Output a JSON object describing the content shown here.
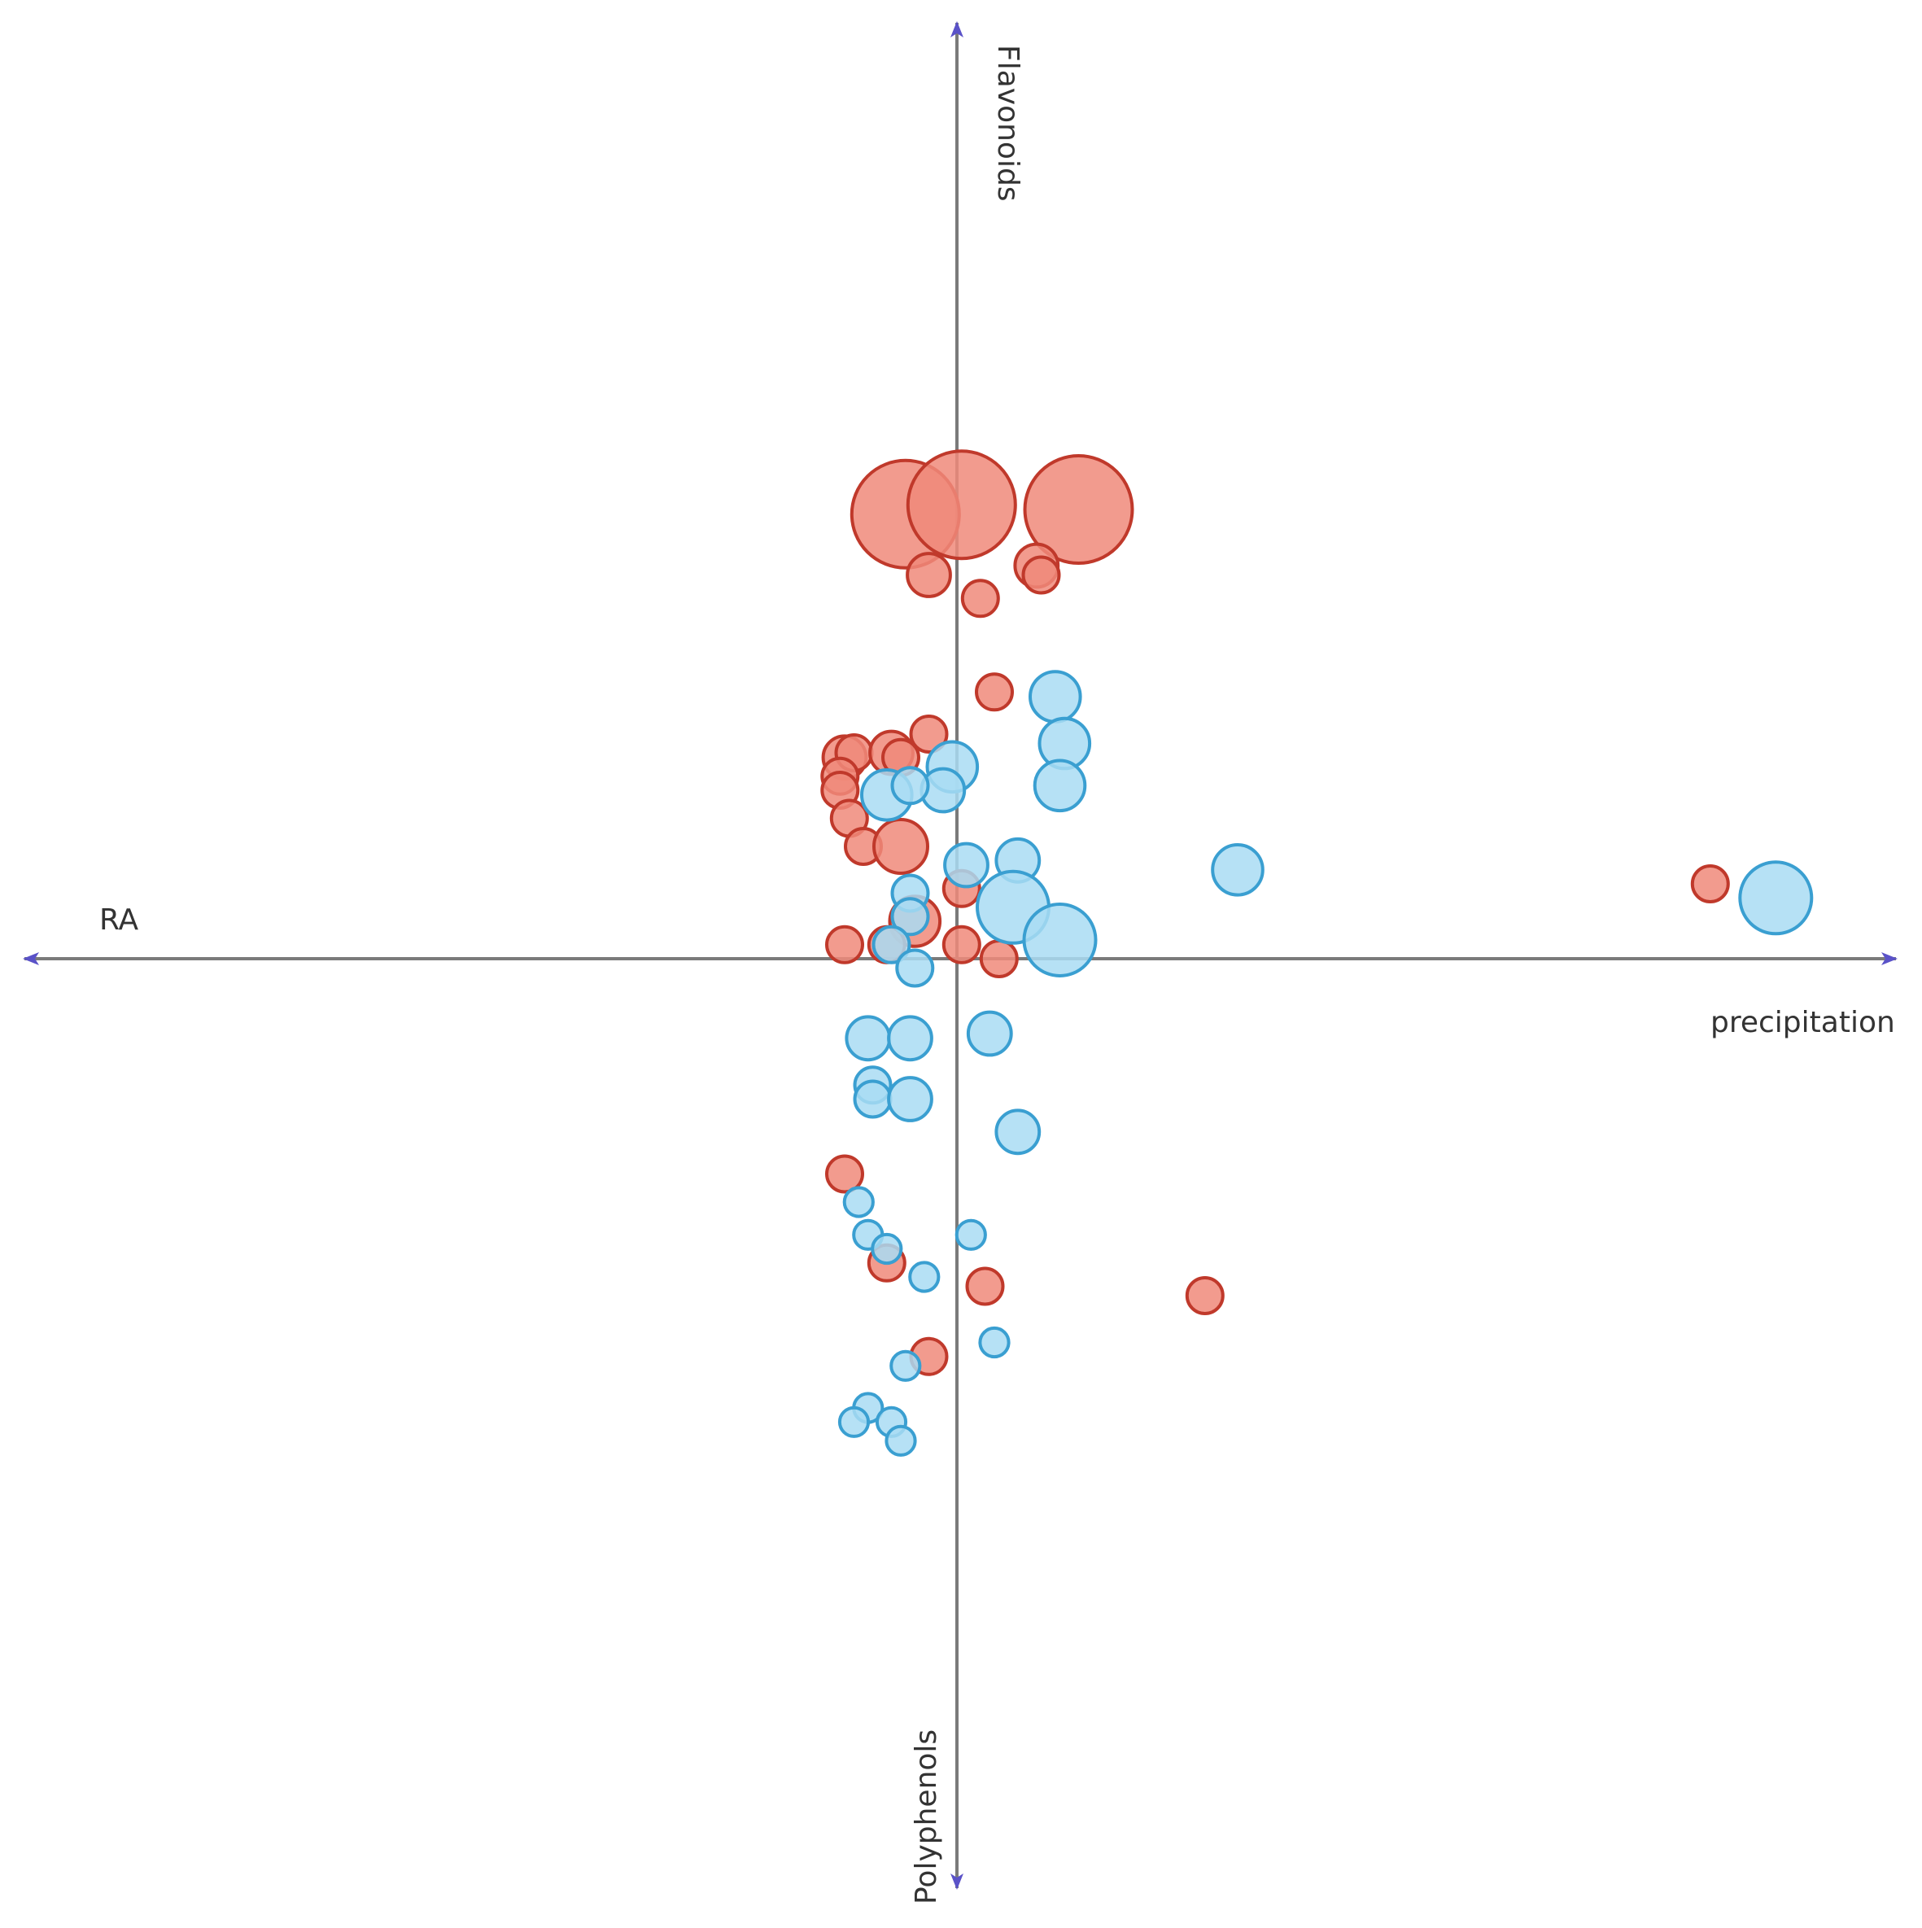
{
  "chart_data": {
    "type": "scatter",
    "subtype": "bubble",
    "title": "",
    "axes": {
      "left_label": "RA",
      "right_label": "precipitation",
      "top_label": "Flavonoids",
      "bottom_label": "Polyphenols"
    },
    "grid": false,
    "legend": "none",
    "xlim": [
      -2.0,
      2.0
    ],
    "ylim": [
      -2.0,
      2.0
    ],
    "colors": {
      "red_fill": "#f08a7a",
      "red_stroke": "#c0392b",
      "blue_fill": "#a9dcf3",
      "blue_stroke": "#3a9fd1",
      "axis": "#7a7a7a",
      "arrow": "#5a52c8"
    },
    "series": [
      {
        "color": "red",
        "points": [
          {
            "x": -0.11,
            "y": 0.95,
            "size": 3.0
          },
          {
            "x": 0.01,
            "y": 0.97,
            "size": 3.0
          },
          {
            "x": 0.26,
            "y": 0.96,
            "size": 3.0
          },
          {
            "x": -0.06,
            "y": 0.82,
            "size": 1.2
          },
          {
            "x": 0.17,
            "y": 0.84,
            "size": 1.2
          },
          {
            "x": 0.18,
            "y": 0.82,
            "size": 1.0
          },
          {
            "x": 0.05,
            "y": 0.77,
            "size": 1.0
          },
          {
            "x": 0.08,
            "y": 0.57,
            "size": 1.0
          },
          {
            "x": -0.06,
            "y": 0.48,
            "size": 1.0
          },
          {
            "x": -0.24,
            "y": 0.43,
            "size": 1.2
          },
          {
            "x": -0.22,
            "y": 0.44,
            "size": 1.0
          },
          {
            "x": -0.14,
            "y": 0.44,
            "size": 1.2
          },
          {
            "x": -0.12,
            "y": 0.43,
            "size": 1.0
          },
          {
            "x": -0.25,
            "y": 0.39,
            "size": 1.0
          },
          {
            "x": -0.25,
            "y": 0.36,
            "size": 1.0
          },
          {
            "x": -0.23,
            "y": 0.3,
            "size": 1.0
          },
          {
            "x": -0.2,
            "y": 0.24,
            "size": 1.0
          },
          {
            "x": -0.12,
            "y": 0.24,
            "size": 1.5
          },
          {
            "x": 0.01,
            "y": 0.15,
            "size": 1.0
          },
          {
            "x": -0.09,
            "y": 0.08,
            "size": 1.4
          },
          {
            "x": -0.24,
            "y": 0.03,
            "size": 1.0
          },
          {
            "x": -0.15,
            "y": 0.03,
            "size": 1.0
          },
          {
            "x": 0.01,
            "y": 0.03,
            "size": 1.0
          },
          {
            "x": 0.09,
            "y": 0.0,
            "size": 1.0
          },
          {
            "x": -0.24,
            "y": -0.46,
            "size": 1.0
          },
          {
            "x": -0.15,
            "y": -0.65,
            "size": 1.0
          },
          {
            "x": 0.06,
            "y": -0.7,
            "size": 1.0
          },
          {
            "x": 0.53,
            "y": -0.72,
            "size": 1.0
          },
          {
            "x": -0.06,
            "y": -0.85,
            "size": 1.0
          },
          {
            "x": 1.61,
            "y": 0.16,
            "size": 1.0
          }
        ]
      },
      {
        "color": "blue",
        "points": [
          {
            "x": 0.21,
            "y": 0.56,
            "size": 1.4
          },
          {
            "x": 0.23,
            "y": 0.46,
            "size": 1.4
          },
          {
            "x": 0.22,
            "y": 0.37,
            "size": 1.4
          },
          {
            "x": -0.01,
            "y": 0.41,
            "size": 1.4
          },
          {
            "x": -0.03,
            "y": 0.36,
            "size": 1.2
          },
          {
            "x": -0.15,
            "y": 0.35,
            "size": 1.4
          },
          {
            "x": -0.1,
            "y": 0.37,
            "size": 1.0
          },
          {
            "x": 0.02,
            "y": 0.2,
            "size": 1.2
          },
          {
            "x": 0.13,
            "y": 0.21,
            "size": 1.2
          },
          {
            "x": 0.6,
            "y": 0.19,
            "size": 1.4
          },
          {
            "x": -0.1,
            "y": 0.14,
            "size": 1.0
          },
          {
            "x": 0.12,
            "y": 0.11,
            "size": 2.0
          },
          {
            "x": 0.22,
            "y": 0.04,
            "size": 2.0
          },
          {
            "x": -0.1,
            "y": 0.09,
            "size": 1.0
          },
          {
            "x": -0.14,
            "y": 0.03,
            "size": 1.0
          },
          {
            "x": -0.09,
            "y": -0.02,
            "size": 1.0
          },
          {
            "x": -0.19,
            "y": -0.17,
            "size": 1.2
          },
          {
            "x": -0.1,
            "y": -0.17,
            "size": 1.2
          },
          {
            "x": 0.07,
            "y": -0.16,
            "size": 1.2
          },
          {
            "x": -0.18,
            "y": -0.27,
            "size": 1.0
          },
          {
            "x": -0.18,
            "y": -0.3,
            "size": 1.0
          },
          {
            "x": -0.1,
            "y": -0.3,
            "size": 1.2
          },
          {
            "x": 0.13,
            "y": -0.37,
            "size": 1.2
          },
          {
            "x": -0.21,
            "y": -0.52,
            "size": 0.8
          },
          {
            "x": -0.19,
            "y": -0.59,
            "size": 0.8
          },
          {
            "x": -0.15,
            "y": -0.62,
            "size": 0.8
          },
          {
            "x": 0.03,
            "y": -0.59,
            "size": 0.8
          },
          {
            "x": -0.07,
            "y": -0.68,
            "size": 0.8
          },
          {
            "x": 0.08,
            "y": -0.82,
            "size": 0.8
          },
          {
            "x": -0.11,
            "y": -0.87,
            "size": 0.8
          },
          {
            "x": -0.19,
            "y": -0.96,
            "size": 0.8
          },
          {
            "x": -0.22,
            "y": -0.99,
            "size": 0.8
          },
          {
            "x": -0.14,
            "y": -0.99,
            "size": 0.8
          },
          {
            "x": -0.12,
            "y": -1.03,
            "size": 0.8
          },
          {
            "x": 1.75,
            "y": 0.13,
            "size": 2.0
          }
        ]
      }
    ]
  }
}
